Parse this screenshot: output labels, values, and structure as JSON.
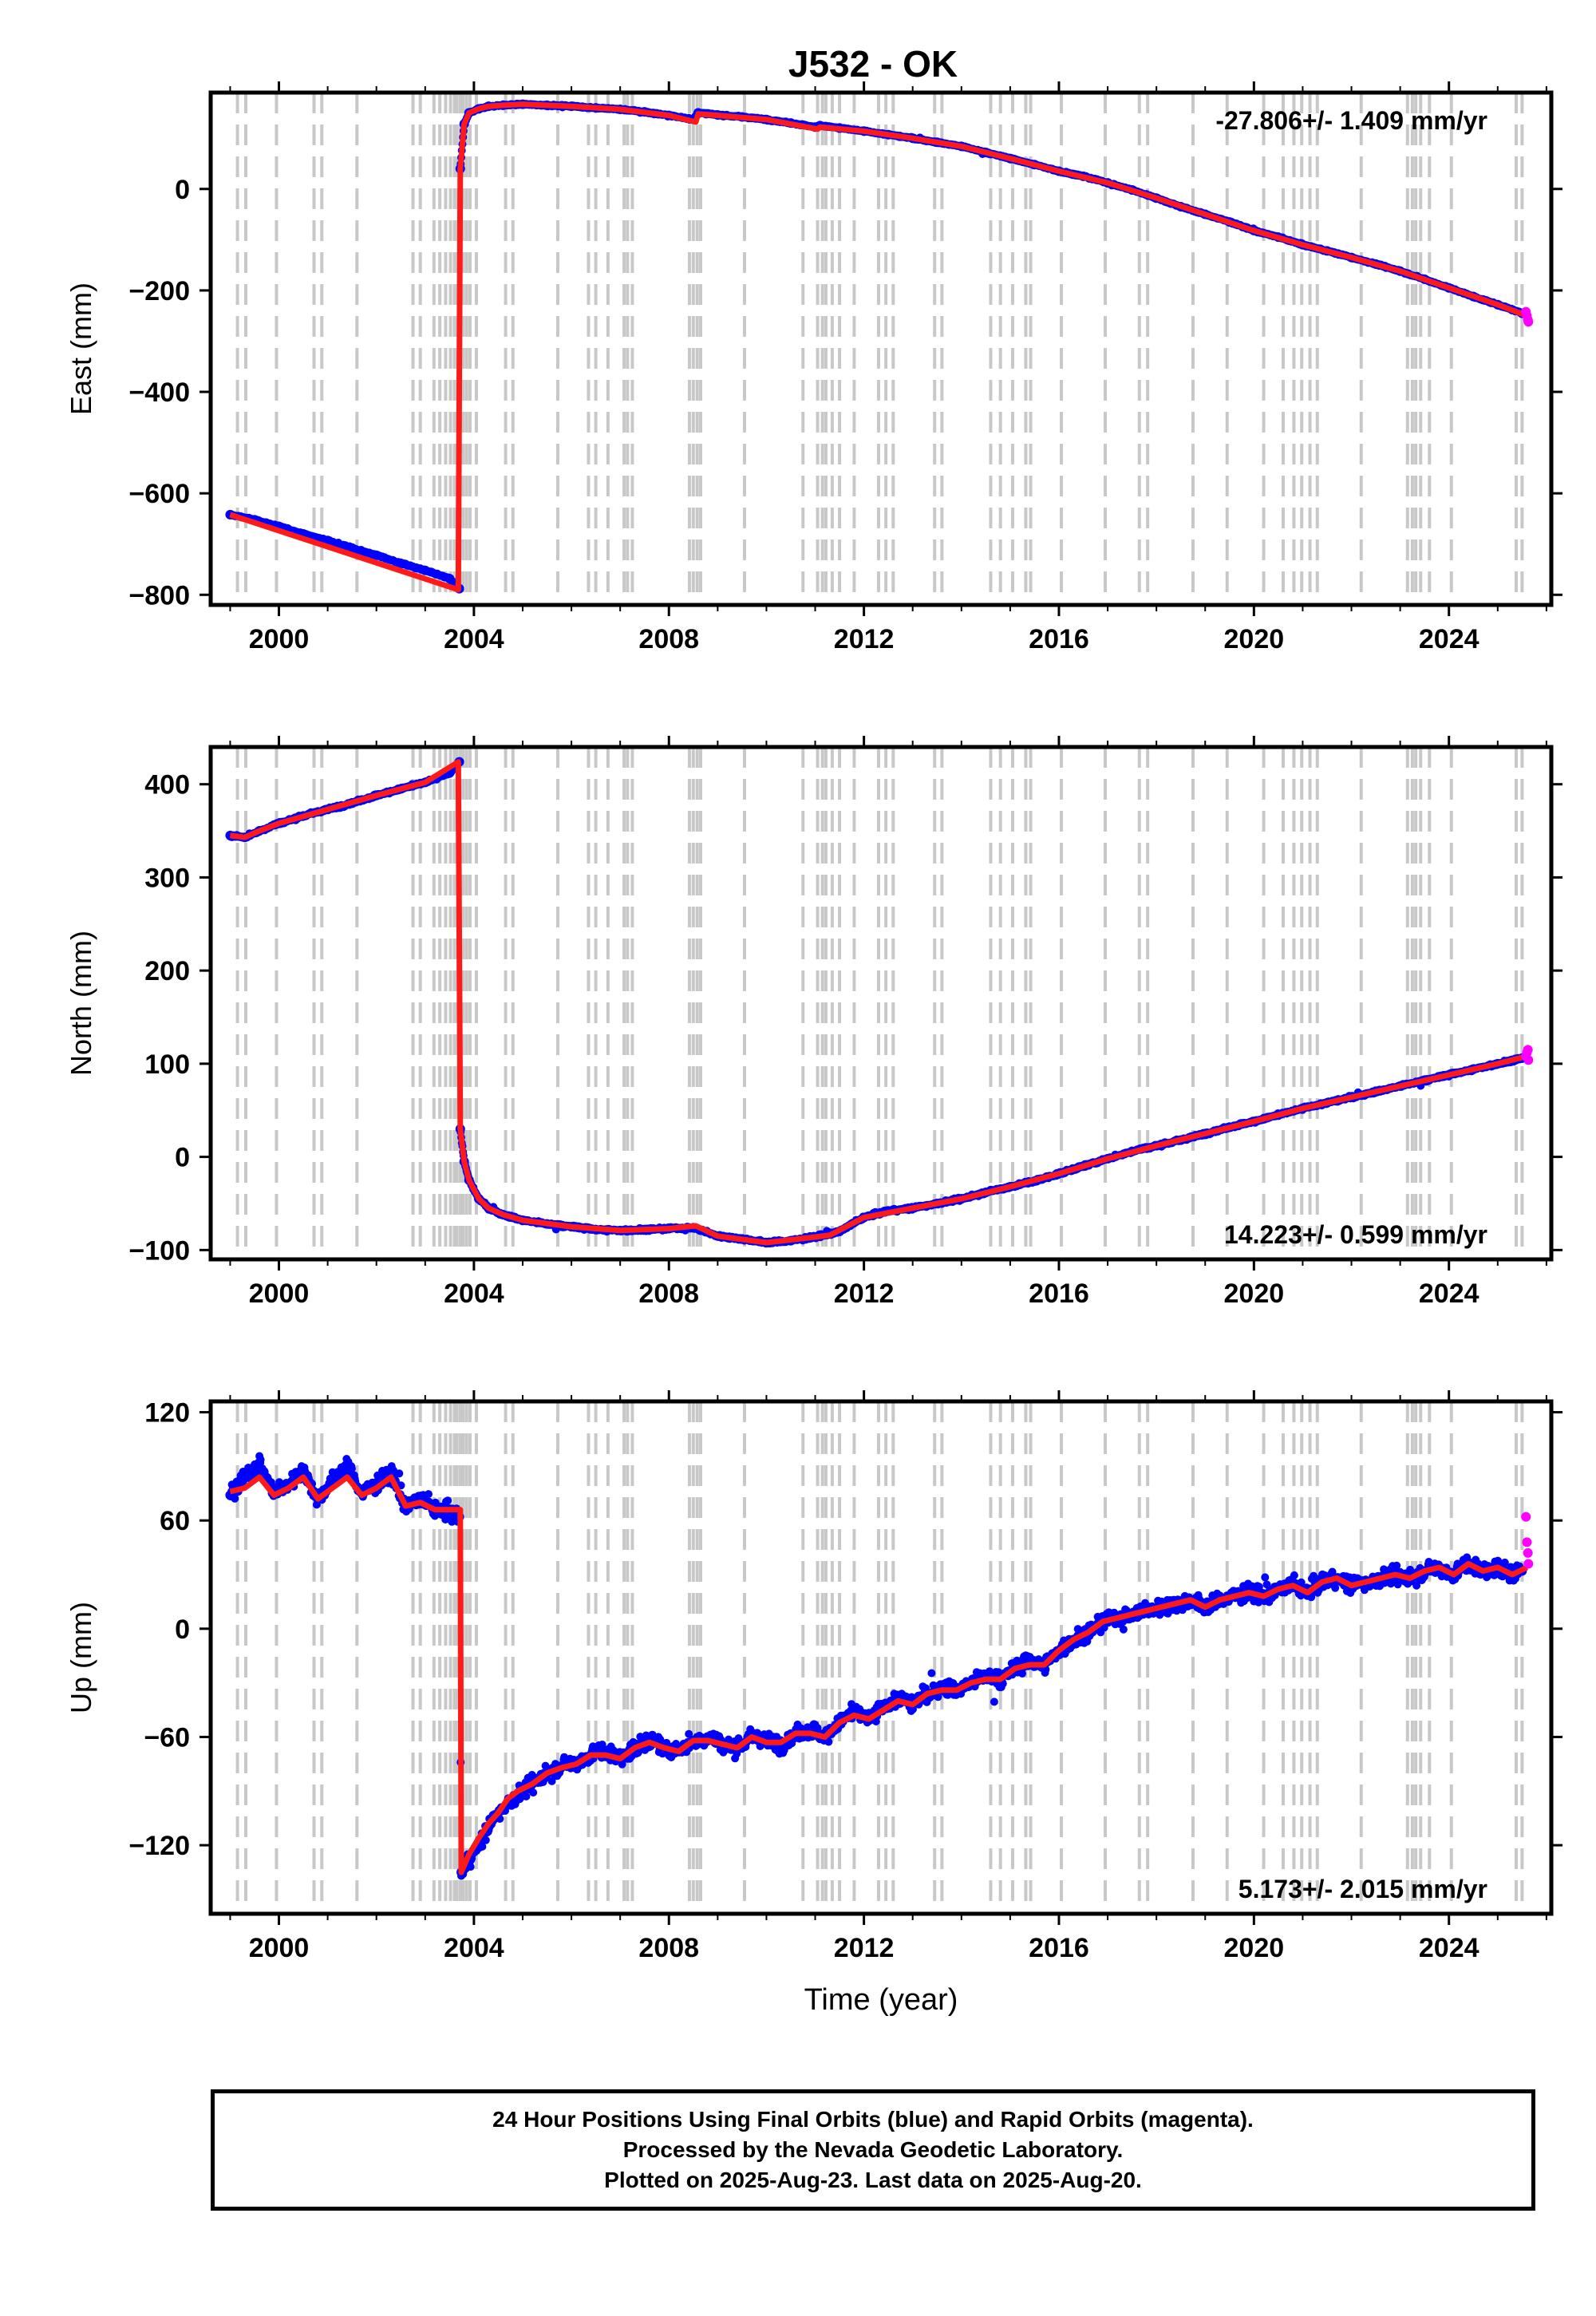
{
  "figure": {
    "title": "J532 - OK",
    "notes": [
      "24 Hour Positions Using Final Orbits (blue) and Rapid Orbits (magenta).",
      "Processed by the Nevada Geodetic Laboratory.",
      "Plotted on 2025-Aug-23. Last data on 2025-Aug-20."
    ]
  },
  "colors": {
    "final_orbits": "#0000ff",
    "rapid_orbits": "#ff00ff",
    "model_fit": "#ff1a1a",
    "event_lines": "#c8c8c8",
    "axis": "#000000"
  },
  "event_lines_years": [
    1999.15,
    1999.32,
    1999.95,
    2000.72,
    2000.88,
    2001.6,
    2002.75,
    2002.9,
    2003.18,
    2003.3,
    2003.42,
    2003.52,
    2003.6,
    2003.65,
    2003.72,
    2003.78,
    2003.85,
    2003.92,
    2004.05,
    2004.65,
    2004.8,
    2005.72,
    2006.35,
    2006.5,
    2006.75,
    2007.08,
    2007.15,
    2007.25,
    2008.42,
    2008.5,
    2008.58,
    2008.65,
    2009.55,
    2010.75,
    2011.05,
    2011.15,
    2011.22,
    2011.35,
    2011.5,
    2011.8,
    2012.3,
    2012.45,
    2012.6,
    2013.45,
    2013.6,
    2014.6,
    2014.8,
    2015.05,
    2015.32,
    2015.42,
    2016.05,
    2016.95,
    2017.65,
    2017.82,
    2018.75,
    2019.45,
    2020.2,
    2020.6,
    2020.82,
    2020.98,
    2021.15,
    2021.3,
    2022.2,
    2023.15,
    2023.25,
    2023.32,
    2023.42,
    2023.6,
    2024.05,
    2025.38,
    2025.5
  ],
  "chart_data": [
    {
      "type": "scatter",
      "component": "east",
      "ylabel": "East (mm)",
      "xlabel": "",
      "velocity_label": "-27.806+/- 1.409 mm/yr",
      "velocity_position": "top-right",
      "xlim": [
        1998.6,
        2026.1
      ],
      "ylim": [
        -820,
        190
      ],
      "xticks": [
        "2000",
        "2004",
        "2008",
        "2012",
        "2016",
        "2020",
        "2024"
      ],
      "yticks": [
        "0",
        "−200",
        "−400",
        "−600",
        "−800"
      ],
      "grid": false,
      "series": [
        {
          "style": "final-orbits-points",
          "x": [
            1999.0,
            1999.5,
            2000.0,
            2000.5,
            2001.0,
            2001.5,
            2002.0,
            2002.5,
            2003.0,
            2003.5,
            2003.7,
            2003.72,
            2003.8,
            2003.9,
            2004.1,
            2004.3,
            2004.6,
            2005.0,
            2005.5,
            2006.0,
            2006.5,
            2007.0,
            2007.5,
            2008.0,
            2008.5,
            2008.6,
            2009.0,
            2009.5,
            2010.0,
            2010.5,
            2011.0,
            2011.1,
            2011.5,
            2012.0,
            2012.5,
            2013.0,
            2013.5,
            2014.0,
            2014.5,
            2015.0,
            2015.5,
            2016.0,
            2016.5,
            2017.0,
            2017.5,
            2018.0,
            2018.5,
            2019.0,
            2019.5,
            2020.0,
            2020.5,
            2021.0,
            2021.5,
            2022.0,
            2022.5,
            2023.0,
            2023.5,
            2024.0,
            2024.5,
            2025.0,
            2025.5
          ],
          "y": [
            -642,
            -652,
            -665,
            -680,
            -693,
            -708,
            -722,
            -738,
            -752,
            -768,
            -788,
            40,
            128,
            150,
            158,
            163,
            165,
            167,
            165,
            163,
            160,
            157,
            152,
            145,
            137,
            150,
            146,
            142,
            137,
            130,
            122,
            125,
            120,
            114,
            107,
            100,
            92,
            84,
            72,
            60,
            48,
            35,
            25,
            12,
            -2,
            -18,
            -35,
            -50,
            -65,
            -82,
            -95,
            -110,
            -122,
            -135,
            -148,
            -162,
            -178,
            -195,
            -212,
            -228,
            -245
          ]
        },
        {
          "style": "rapid-orbits-points",
          "x": [
            2025.58,
            2025.6,
            2025.62,
            2025.63
          ],
          "y": [
            -242,
            -250,
            -258,
            -262
          ]
        },
        {
          "style": "model-fit-line",
          "x": [
            1999.0,
            2003.68,
            2003.72,
            2003.8,
            2003.9,
            2004.1,
            2004.3,
            2004.6,
            2005.0,
            2006.0,
            2007.0,
            2008.0,
            2008.55,
            2008.6,
            2009.0,
            2010.0,
            2011.05,
            2011.1,
            2012.0,
            2013.0,
            2014.0,
            2015.0,
            2016.0,
            2017.0,
            2018.0,
            2019.0,
            2020.0,
            2021.0,
            2022.0,
            2023.0,
            2024.0,
            2025.0,
            2025.6
          ],
          "y": [
            -642,
            -790,
            40,
            128,
            150,
            158,
            163,
            165,
            167,
            163,
            157,
            145,
            132,
            148,
            145,
            137,
            118,
            122,
            114,
            100,
            84,
            60,
            35,
            12,
            -18,
            -50,
            -82,
            -110,
            -135,
            -162,
            -195,
            -228,
            -250
          ]
        }
      ]
    },
    {
      "type": "scatter",
      "component": "north",
      "ylabel": "North (mm)",
      "xlabel": "",
      "velocity_label": "14.223+/- 0.599 mm/yr",
      "velocity_position": "bottom-right",
      "xlim": [
        1998.6,
        2026.1
      ],
      "ylim": [
        -110,
        440
      ],
      "xticks": [
        "2000",
        "2004",
        "2008",
        "2012",
        "2016",
        "2020",
        "2024"
      ],
      "yticks": [
        "400",
        "300",
        "200",
        "100",
        "0",
        "−100"
      ],
      "grid": false,
      "series": [
        {
          "style": "final-orbits-points",
          "x": [
            1999.0,
            1999.3,
            1999.6,
            2000.0,
            2000.5,
            2001.0,
            2001.5,
            2002.0,
            2002.5,
            2003.0,
            2003.5,
            2003.7,
            2003.72,
            2003.8,
            2003.9,
            2004.1,
            2004.3,
            2004.6,
            2005.0,
            2005.5,
            2006.0,
            2006.5,
            2007.0,
            2007.5,
            2008.0,
            2008.5,
            2009.0,
            2009.5,
            2010.0,
            2010.5,
            2011.0,
            2011.5,
            2012.0,
            2012.5,
            2013.0,
            2013.5,
            2014.0,
            2014.5,
            2015.0,
            2015.5,
            2016.0,
            2016.5,
            2017.0,
            2017.5,
            2018.0,
            2018.5,
            2019.0,
            2019.5,
            2020.0,
            2020.5,
            2021.0,
            2021.5,
            2022.0,
            2022.5,
            2023.0,
            2023.5,
            2024.0,
            2024.5,
            2025.0,
            2025.5
          ],
          "y": [
            345,
            343,
            350,
            358,
            366,
            373,
            380,
            388,
            395,
            402,
            412,
            424,
            30,
            -5,
            -25,
            -45,
            -55,
            -62,
            -68,
            -72,
            -75,
            -78,
            -79,
            -78,
            -77,
            -76,
            -85,
            -88,
            -92,
            -90,
            -86,
            -80,
            -65,
            -58,
            -55,
            -50,
            -45,
            -38,
            -32,
            -26,
            -18,
            -10,
            -2,
            6,
            12,
            18,
            25,
            32,
            38,
            45,
            52,
            58,
            64,
            70,
            76,
            82,
            88,
            94,
            100,
            106
          ]
        },
        {
          "style": "rapid-orbits-points",
          "x": [
            2025.58,
            2025.6,
            2025.62,
            2025.63
          ],
          "y": [
            108,
            112,
            115,
            104
          ]
        },
        {
          "style": "model-fit-line",
          "x": [
            1999.0,
            1999.3,
            1999.6,
            2000.0,
            2001.0,
            2002.0,
            2003.0,
            2003.68,
            2003.72,
            2003.8,
            2003.9,
            2004.1,
            2004.3,
            2004.6,
            2005.0,
            2006.0,
            2007.0,
            2008.0,
            2008.55,
            2009.0,
            2010.0,
            2011.0,
            2011.3,
            2012.0,
            2013.0,
            2014.0,
            2015.0,
            2016.0,
            2017.0,
            2018.0,
            2019.0,
            2020.0,
            2021.0,
            2022.0,
            2023.0,
            2024.0,
            2025.0,
            2025.6
          ],
          "y": [
            345,
            343,
            350,
            358,
            373,
            388,
            402,
            424,
            30,
            -5,
            -25,
            -45,
            -55,
            -62,
            -68,
            -75,
            -79,
            -77,
            -74,
            -85,
            -92,
            -86,
            -84,
            -65,
            -55,
            -45,
            -32,
            -18,
            -2,
            12,
            25,
            38,
            52,
            64,
            76,
            88,
            100,
            108
          ]
        }
      ]
    },
    {
      "type": "scatter",
      "component": "up",
      "ylabel": "Up (mm)",
      "xlabel": "Time (year)",
      "velocity_label": "5.173+/- 2.015 mm/yr",
      "velocity_position": "bottom-right",
      "xlim": [
        1998.6,
        2026.1
      ],
      "ylim": [
        -158,
        126
      ],
      "xticks": [
        "2000",
        "2004",
        "2008",
        "2012",
        "2016",
        "2020",
        "2024"
      ],
      "yticks": [
        "120",
        "60",
        "0",
        "−60",
        "−120"
      ],
      "grid": false,
      "series": [
        {
          "style": "final-orbits-points",
          "x": [
            1999.0,
            1999.3,
            1999.6,
            1999.9,
            2000.2,
            2000.5,
            2000.8,
            2001.1,
            2001.4,
            2001.7,
            2002.0,
            2002.3,
            2002.6,
            2002.9,
            2003.2,
            2003.5,
            2003.7,
            2003.74,
            2003.9,
            2004.1,
            2004.3,
            2004.5,
            2004.7,
            2004.9,
            2005.2,
            2005.5,
            2005.8,
            2006.1,
            2006.4,
            2006.7,
            2007.0,
            2007.3,
            2007.6,
            2007.9,
            2008.2,
            2008.5,
            2008.8,
            2009.1,
            2009.4,
            2009.7,
            2010.0,
            2010.3,
            2010.6,
            2010.9,
            2011.2,
            2011.5,
            2011.8,
            2012.1,
            2012.4,
            2012.7,
            2013.0,
            2013.3,
            2013.6,
            2013.9,
            2014.2,
            2014.5,
            2014.8,
            2015.1,
            2015.4,
            2015.7,
            2016.0,
            2016.3,
            2016.6,
            2016.9,
            2017.2,
            2017.5,
            2017.8,
            2018.1,
            2018.4,
            2018.7,
            2019.0,
            2019.3,
            2019.6,
            2019.9,
            2020.2,
            2020.5,
            2020.8,
            2021.1,
            2021.4,
            2021.7,
            2022.0,
            2022.3,
            2022.6,
            2022.9,
            2023.2,
            2023.5,
            2023.8,
            2024.1,
            2024.4,
            2024.7,
            2025.0,
            2025.3,
            2025.5
          ],
          "y": [
            74,
            84,
            92,
            75,
            80,
            88,
            72,
            82,
            90,
            75,
            80,
            86,
            68,
            72,
            66,
            64,
            62,
            -135,
            -128,
            -120,
            -110,
            -102,
            -96,
            -92,
            -86,
            -80,
            -76,
            -74,
            -70,
            -68,
            -72,
            -66,
            -62,
            -66,
            -68,
            -62,
            -60,
            -64,
            -66,
            -60,
            -62,
            -64,
            -58,
            -56,
            -60,
            -52,
            -46,
            -50,
            -44,
            -38,
            -42,
            -36,
            -32,
            -34,
            -30,
            -26,
            -28,
            -22,
            -18,
            -20,
            -12,
            -6,
            -2,
            4,
            6,
            8,
            10,
            12,
            14,
            16,
            12,
            16,
            18,
            20,
            18,
            22,
            24,
            20,
            26,
            28,
            24,
            26,
            28,
            30,
            28,
            32,
            34,
            30,
            36,
            32,
            34,
            30,
            32
          ]
        },
        {
          "style": "rapid-orbits-points",
          "x": [
            2025.58,
            2025.6,
            2025.62,
            2025.63
          ],
          "y": [
            62,
            48,
            42,
            36
          ]
        },
        {
          "style": "model-fit-line",
          "x": [
            1999.0,
            1999.3,
            1999.6,
            1999.9,
            2000.2,
            2000.5,
            2000.8,
            2001.1,
            2001.4,
            2001.7,
            2002.0,
            2002.3,
            2002.6,
            2002.9,
            2003.2,
            2003.5,
            2003.72,
            2003.74,
            2003.9,
            2004.1,
            2004.3,
            2004.5,
            2004.7,
            2004.9,
            2005.2,
            2005.5,
            2005.8,
            2006.1,
            2006.4,
            2006.7,
            2007.0,
            2007.3,
            2007.6,
            2007.9,
            2008.2,
            2008.5,
            2008.8,
            2009.1,
            2009.4,
            2009.7,
            2010.0,
            2010.3,
            2010.6,
            2010.9,
            2011.2,
            2011.5,
            2011.8,
            2012.1,
            2012.4,
            2012.7,
            2013.0,
            2013.3,
            2013.6,
            2013.9,
            2014.2,
            2014.5,
            2014.8,
            2015.1,
            2015.4,
            2015.7,
            2016.0,
            2016.3,
            2016.6,
            2016.9,
            2017.2,
            2017.5,
            2017.8,
            2018.1,
            2018.4,
            2018.7,
            2019.0,
            2019.3,
            2019.6,
            2019.9,
            2020.2,
            2020.5,
            2020.8,
            2021.1,
            2021.4,
            2021.7,
            2022.0,
            2022.3,
            2022.6,
            2022.9,
            2023.2,
            2023.5,
            2023.8,
            2024.1,
            2024.4,
            2024.7,
            2025.0,
            2025.3,
            2025.6
          ],
          "y": [
            76,
            78,
            84,
            74,
            78,
            84,
            72,
            78,
            84,
            74,
            78,
            84,
            68,
            70,
            66,
            66,
            66,
            -135,
            -125,
            -116,
            -108,
            -102,
            -94,
            -90,
            -86,
            -80,
            -77,
            -75,
            -70,
            -70,
            -72,
            -66,
            -63,
            -66,
            -68,
            -62,
            -62,
            -64,
            -66,
            -60,
            -63,
            -63,
            -58,
            -58,
            -60,
            -52,
            -48,
            -50,
            -45,
            -40,
            -42,
            -36,
            -34,
            -34,
            -30,
            -28,
            -28,
            -22,
            -20,
            -20,
            -12,
            -6,
            -2,
            4,
            6,
            8,
            10,
            12,
            14,
            16,
            12,
            16,
            18,
            20,
            18,
            22,
            24,
            20,
            26,
            28,
            24,
            26,
            28,
            30,
            28,
            32,
            34,
            30,
            36,
            32,
            34,
            30,
            34
          ]
        }
      ]
    }
  ]
}
